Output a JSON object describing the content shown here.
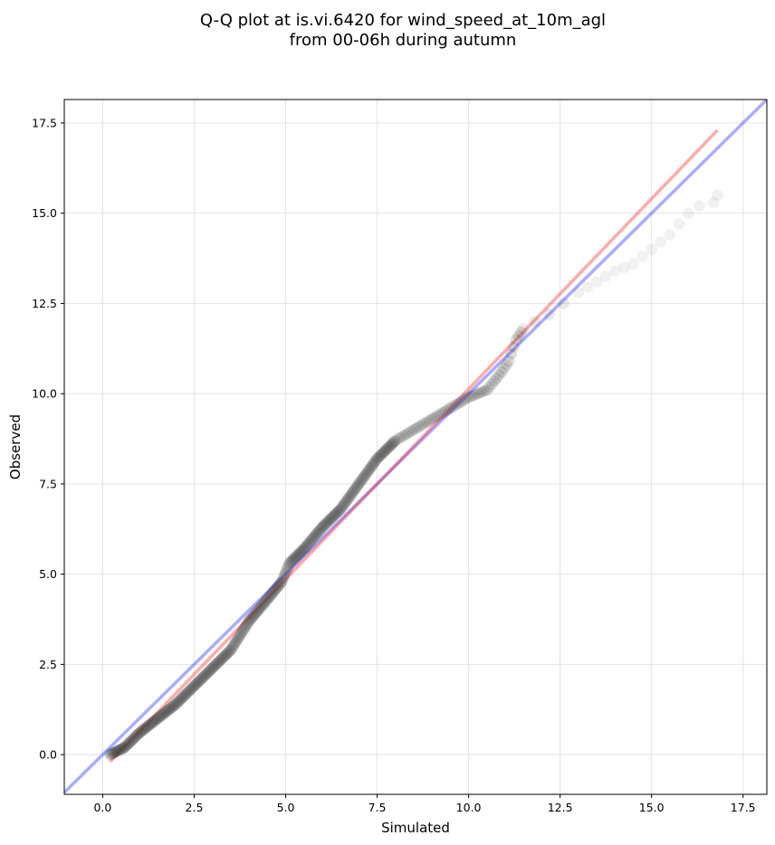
{
  "chart_data": {
    "type": "scatter",
    "title_lines": [
      "Q-Q plot at is.vi.6420 for wind_speed_at_10m_agl",
      "from 00-06h during autumn"
    ],
    "xlabel": "Simulated",
    "ylabel": "Observed",
    "xlim": [
      -1.05,
      18.15
    ],
    "ylim": [
      -1.1,
      18.15
    ],
    "x_ticks": [
      "0.0",
      "2.5",
      "5.0",
      "7.5",
      "10.0",
      "12.5",
      "15.0",
      "17.5"
    ],
    "y_ticks": [
      "0.0",
      "2.5",
      "5.0",
      "7.5",
      "10.0",
      "12.5",
      "15.0",
      "17.5"
    ],
    "grid": true,
    "reference_lines": [
      {
        "color": "#0000ff",
        "x": [
          -1.05,
          18.15
        ],
        "y": [
          -1.05,
          18.15
        ]
      },
      {
        "color": "#ff0000",
        "x": [
          0.2,
          16.8
        ],
        "y": [
          -0.2,
          17.3
        ]
      }
    ],
    "points_color": "#333333",
    "qq_curve": {
      "x": [
        0.2,
        0.6,
        1.0,
        1.5,
        2.0,
        2.5,
        3.0,
        3.5,
        4.0,
        4.5,
        4.9,
        5.1,
        5.5,
        6.0,
        6.5,
        7.0,
        7.5,
        8.0,
        8.5,
        9.0,
        9.5,
        10.0,
        10.5,
        10.9,
        11.1,
        11.3,
        11.5,
        11.8,
        12.2,
        12.6,
        13.0,
        13.5,
        14.0,
        14.5,
        15.0,
        15.5,
        16.0,
        16.3,
        16.7,
        16.8
      ],
      "y": [
        0.0,
        0.2,
        0.6,
        1.0,
        1.4,
        1.9,
        2.4,
        2.9,
        3.7,
        4.3,
        4.8,
        5.3,
        5.7,
        6.3,
        6.8,
        7.5,
        8.2,
        8.7,
        9.0,
        9.3,
        9.6,
        9.9,
        10.1,
        10.6,
        10.9,
        11.5,
        11.8,
        12.0,
        12.2,
        12.5,
        12.8,
        13.1,
        13.4,
        13.6,
        14.0,
        14.4,
        15.0,
        15.2,
        15.3,
        15.5
      ]
    }
  }
}
